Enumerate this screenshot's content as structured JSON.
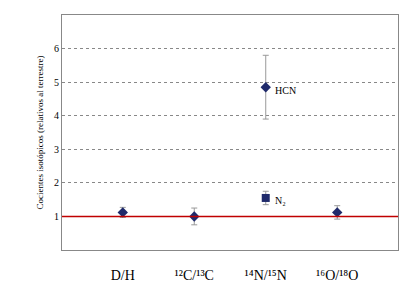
{
  "chart_data": {
    "type": "scatter",
    "y_label": "Cocientes isotópicos (relativos al terrestre)",
    "categories": [
      "D/H",
      "¹²C/¹³C",
      "¹⁴N/¹⁵N",
      "¹⁶O/¹⁸O"
    ],
    "series": [
      {
        "color": "#1f2a6b",
        "marker": "diamond",
        "values": [
          1.12,
          1.0,
          4.85,
          1.12
        ],
        "errors": [
          0.15,
          0.25,
          0.95,
          0.2
        ]
      },
      {
        "color": "#1f2a6b",
        "marker": "square",
        "values": [
          null,
          null,
          1.55,
          null
        ],
        "errors": [
          null,
          null,
          0.2,
          null
        ]
      }
    ],
    "annotations": [
      {
        "text": "HCN",
        "category": "¹⁴N/¹⁵N",
        "y": 4.85
      },
      {
        "text": "N₂",
        "category": "¹⁴N/¹⁵N",
        "y": 1.55
      }
    ],
    "reference": {
      "value": 1,
      "color": "#c00000"
    },
    "ylim": [
      0,
      7
    ],
    "yticks": [
      1,
      2,
      3,
      4,
      5,
      6
    ],
    "grid": true
  }
}
